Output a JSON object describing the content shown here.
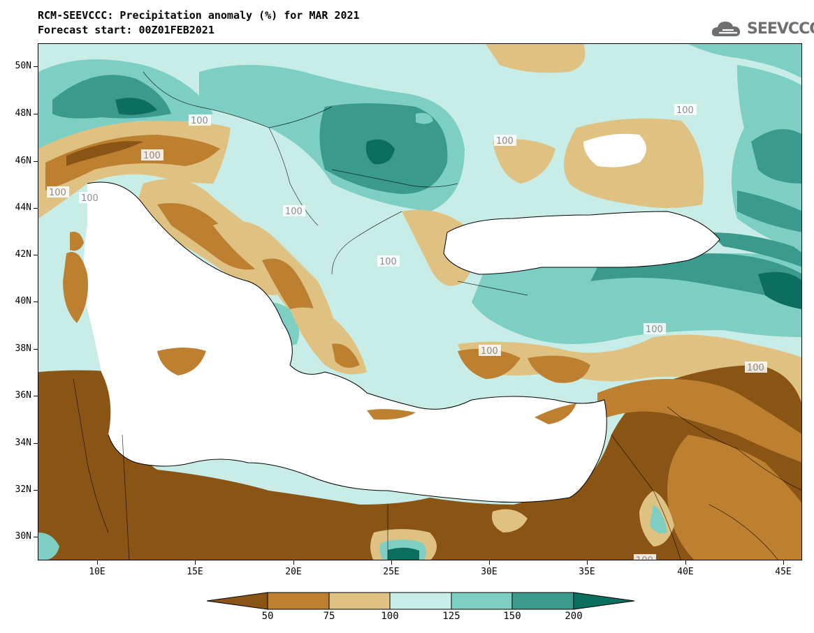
{
  "header": {
    "title_line1": "RCM-SEEVCCC: Precipitation anomaly (%) for MAR 2021",
    "title_line2": "Forecast start: 00Z01FEB2021"
  },
  "logo": {
    "text": "SEEVCCC",
    "icon": "cloud-logo-icon"
  },
  "map": {
    "lat_labels": [
      "50N",
      "48N",
      "46N",
      "44N",
      "42N",
      "40N",
      "38N",
      "36N",
      "34N",
      "32N",
      "30N"
    ],
    "lon_labels": [
      "10E",
      "15E",
      "20E",
      "25E",
      "30E",
      "35E",
      "40E",
      "45E"
    ],
    "contour_labels": [
      "100",
      "100",
      "100",
      "100",
      "100",
      "100",
      "100",
      "100",
      "100",
      "100",
      "100",
      "100"
    ]
  },
  "colorbar": {
    "labels": [
      "50",
      "75",
      "100",
      "125",
      "150",
      "200"
    ],
    "colors": [
      "#8a5414",
      "#bc8030",
      "#dfc182",
      "#c8ece6",
      "#7ccfc2",
      "#3a9a8e",
      "#0b6e5e"
    ]
  },
  "colors": {
    "very_dry": "#8a5414",
    "dry": "#bc8030",
    "slightly_dry": "#dfc182",
    "slightly_wet": "#c8ece6",
    "wet": "#7ccfc2",
    "very_wet": "#3a9a8e",
    "extreme_wet": "#0b6e5e"
  }
}
